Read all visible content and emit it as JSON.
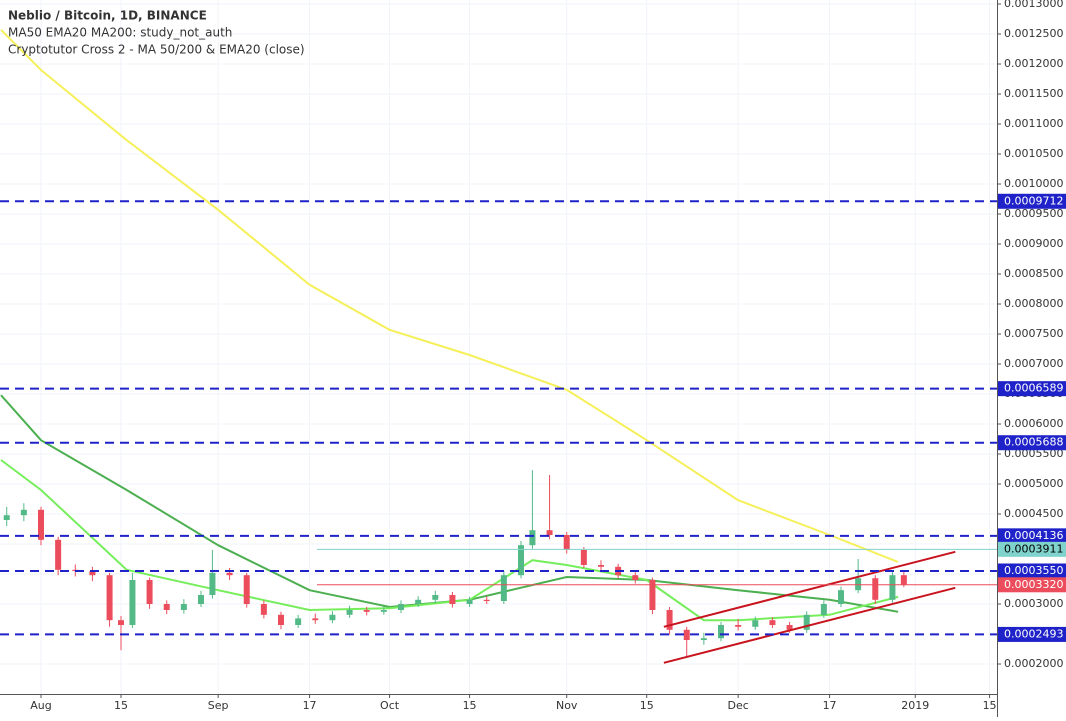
{
  "chart_data": {
    "type": "candlestick",
    "title": "Neblio / Bitcoin, 1D, BINANCE",
    "legend_lines": [
      "MA50 EMA20 MA200: study_not_auth",
      "Cryptotutor Cross 2 - MA 50/200 & EMA20 (close)"
    ],
    "xlim": [
      -7.175,
      167.3
    ],
    "ylim": [
      0.00015,
      0.0013
    ],
    "grid": true,
    "up_color": "#53b987",
    "down_color": "#eb4d5c",
    "xticks": [
      {
        "value": 0,
        "label": "Aug"
      },
      {
        "value": 14,
        "label": "15"
      },
      {
        "value": 31,
        "label": "Sep"
      },
      {
        "value": 47,
        "label": "17"
      },
      {
        "value": 61,
        "label": "Oct"
      },
      {
        "value": 75,
        "label": "15"
      },
      {
        "value": 92,
        "label": "Nov"
      },
      {
        "value": 106,
        "label": "15"
      },
      {
        "value": 122,
        "label": "Dec"
      },
      {
        "value": 138,
        "label": "17"
      },
      {
        "value": 153,
        "label": "2019"
      },
      {
        "value": 166,
        "label": "15"
      }
    ],
    "yticks": [
      {
        "value": 0.0002,
        "label": "0.0002000"
      },
      {
        "value": 0.0003,
        "label": "0.0003000"
      },
      {
        "value": 0.00035,
        "label": "0.0003500"
      },
      {
        "value": 0.0004,
        "label": "0.0004000"
      },
      {
        "value": 0.00045,
        "label": "0.0004500"
      },
      {
        "value": 0.0005,
        "label": "0.0005000"
      },
      {
        "value": 0.00055,
        "label": "0.0005500"
      },
      {
        "value": 0.0006,
        "label": "0.0006000"
      },
      {
        "value": 0.00065,
        "label": "0.0006500"
      },
      {
        "value": 0.0007,
        "label": "0.0007000"
      },
      {
        "value": 0.00075,
        "label": "0.0007500"
      },
      {
        "value": 0.0008,
        "label": "0.0008000"
      },
      {
        "value": 0.00085,
        "label": "0.0008500"
      },
      {
        "value": 0.0009,
        "label": "0.0009000"
      },
      {
        "value": 0.00095,
        "label": "0.0009500"
      },
      {
        "value": 0.001,
        "label": "0.0010000"
      },
      {
        "value": 0.00105,
        "label": "0.0010500"
      },
      {
        "value": 0.0011,
        "label": "0.0011000"
      },
      {
        "value": 0.00115,
        "label": "0.0011500"
      },
      {
        "value": 0.0012,
        "label": "0.0012000"
      },
      {
        "value": 0.00125,
        "label": "0.0012500"
      },
      {
        "value": 0.0013,
        "label": "0.0013000"
      }
    ],
    "levels": [
      {
        "value": 0.0009712,
        "label": "0.0009712",
        "color": "#1e22c8",
        "dashed": true
      },
      {
        "value": 0.0006589,
        "label": "0.0006589",
        "color": "#1e22c8",
        "dashed": true
      },
      {
        "value": 0.0005688,
        "label": "0.0005688",
        "color": "#1e22c8",
        "dashed": true
      },
      {
        "value": 0.0004136,
        "label": "0.0004136",
        "color": "#1e22c8",
        "dashed": true
      },
      {
        "value": 0.0003911,
        "label": "0.0003911",
        "color": "#7fd3cc",
        "dashed": false
      },
      {
        "value": 0.000355,
        "label": "0.0003550",
        "color": "#1e22c8",
        "dashed": true
      },
      {
        "value": 0.000332,
        "label": "0.0003320",
        "color": "#eb4d5c",
        "dashed": false
      },
      {
        "value": 0.0002493,
        "label": "0.0002493",
        "color": "#1e22c8",
        "dashed": true
      }
    ],
    "x": [
      -6,
      -3,
      0,
      3,
      6,
      9,
      12,
      14,
      16,
      19,
      22,
      25,
      28,
      30,
      33,
      36,
      39,
      42,
      45,
      48,
      51,
      54,
      57,
      60,
      63,
      66,
      69,
      72,
      75,
      78,
      81,
      84,
      86,
      89,
      92,
      95,
      98,
      101,
      104,
      107,
      110,
      113,
      116,
      119,
      122,
      125,
      128,
      131,
      134,
      137,
      140,
      143,
      146,
      149,
      151
    ],
    "open": [
      0.00044,
      0.000448,
      0.000457,
      0.000407,
      0.000357,
      0.000355,
      0.000348,
      0.000273,
      0.000265,
      0.00034,
      0.0003,
      0.00029,
      0.0003,
      0.000315,
      0.000352,
      0.000348,
      0.0003,
      0.000282,
      0.000265,
      0.000276,
      0.000273,
      0.000282,
      0.00029,
      0.000287,
      0.00029,
      0.0003,
      0.000307,
      0.000315,
      0.0003,
      0.000307,
      0.000305,
      0.000348,
      0.000398,
      0.000423,
      0.000415,
      0.00039,
      0.000365,
      0.000362,
      0.000348,
      0.00034,
      0.00029,
      0.000257,
      0.00024,
      0.000243,
      0.000265,
      0.000262,
      0.000273,
      0.000265,
      0.000257,
      0.000282,
      0.0003,
      0.000323,
      0.000343,
      0.000307,
      0.000348
    ],
    "high": [
      0.000462,
      0.000468,
      0.000462,
      0.000412,
      0.000366,
      0.000362,
      0.000352,
      0.00028,
      0.000352,
      0.000344,
      0.000306,
      0.000308,
      0.000322,
      0.00039,
      0.00036,
      0.000352,
      0.000306,
      0.000287,
      0.000282,
      0.000284,
      0.000288,
      0.000297,
      0.000295,
      0.000296,
      0.000306,
      0.000313,
      0.000322,
      0.00032,
      0.000312,
      0.000313,
      0.000355,
      0.000405,
      0.000523,
      0.000515,
      0.00042,
      0.000395,
      0.000373,
      0.000367,
      0.000353,
      0.000344,
      0.000295,
      0.000262,
      0.000252,
      0.00027,
      0.000275,
      0.000279,
      0.000278,
      0.00027,
      0.000288,
      0.000306,
      0.000329,
      0.000375,
      0.000348,
      0.000355,
      0.000354
    ],
    "low": [
      0.00043,
      0.000438,
      0.000398,
      0.000348,
      0.000346,
      0.000338,
      0.000262,
      0.000223,
      0.00026,
      0.000292,
      0.000283,
      0.000284,
      0.000295,
      0.000309,
      0.00034,
      0.000294,
      0.000276,
      0.000258,
      0.00026,
      0.000267,
      0.000268,
      0.000277,
      0.000281,
      0.000282,
      0.000285,
      0.000295,
      0.000301,
      0.000294,
      0.000295,
      0.0003,
      0.0003,
      0.000343,
      0.000392,
      0.000408,
      0.000384,
      0.00036,
      0.000356,
      0.000343,
      0.000334,
      0.000283,
      0.000249,
      0.000212,
      0.000232,
      0.000238,
      0.000256,
      0.000257,
      0.00026,
      0.000252,
      0.000252,
      0.000277,
      0.000295,
      0.000318,
      0.0003,
      0.000302,
      0.000328
    ],
    "close": [
      0.000448,
      0.000457,
      0.000407,
      0.000357,
      0.000355,
      0.000348,
      0.000273,
      0.000265,
      0.00034,
      0.0003,
      0.00029,
      0.0003,
      0.000315,
      0.000352,
      0.000348,
      0.0003,
      0.000282,
      0.000265,
      0.000276,
      0.000273,
      0.000282,
      0.00029,
      0.000287,
      0.00029,
      0.0003,
      0.000307,
      0.000315,
      0.0003,
      0.000307,
      0.000305,
      0.000348,
      0.000398,
      0.000423,
      0.000415,
      0.00039,
      0.000365,
      0.000362,
      0.000348,
      0.00034,
      0.00029,
      0.000257,
      0.00024,
      0.000243,
      0.000265,
      0.000262,
      0.000273,
      0.000265,
      0.000257,
      0.000282,
      0.0003,
      0.000323,
      0.000343,
      0.000307,
      0.000348,
      0.000332
    ],
    "lines": [
      {
        "color": "#f5f05a",
        "x": [
          -7,
          0,
          15,
          31,
          47,
          61,
          75,
          92,
          106,
          122,
          138,
          150
        ],
        "values": [
          0.001257,
          0.00119,
          0.001073,
          0.000957,
          0.000832,
          0.000757,
          0.000715,
          0.000657,
          0.000573,
          0.000473,
          0.000415,
          0.00037
        ]
      },
      {
        "color": "#4caf50",
        "x": [
          -7,
          0,
          15,
          31,
          47,
          61,
          75,
          92,
          106,
          122,
          138,
          150
        ],
        "values": [
          0.000648,
          0.000573,
          0.00049,
          0.000398,
          0.000323,
          0.000295,
          0.000307,
          0.000345,
          0.00034,
          0.000323,
          0.000307,
          0.000287
        ]
      },
      {
        "color": "#76ee5c",
        "x": [
          -7,
          0,
          15,
          31,
          47,
          61,
          75,
          86,
          92,
          106,
          116,
          122,
          138,
          150
        ],
        "values": [
          0.00054,
          0.00049,
          0.000357,
          0.000323,
          0.00029,
          0.000293,
          0.000307,
          0.000373,
          0.000365,
          0.00034,
          0.000273,
          0.000273,
          0.000282,
          0.000312
        ]
      }
    ],
    "trendlines": [
      {
        "color": "#c8141e",
        "x": [
          109,
          160
        ],
        "values": [
          0.000262,
          0.000387
        ]
      },
      {
        "color": "#c8141e",
        "x": [
          109,
          160
        ],
        "values": [
          0.000202,
          0.000327
        ]
      }
    ]
  }
}
